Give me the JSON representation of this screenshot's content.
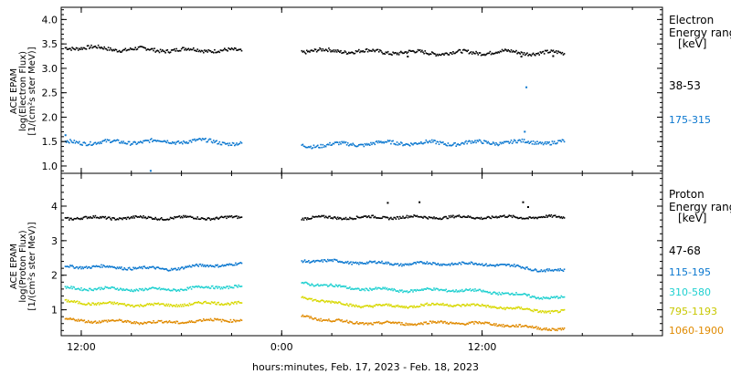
{
  "xaxis": {
    "title": "hours:minutes, Feb. 17, 2023 - Feb. 18, 2023",
    "ticks": [
      {
        "value": 12,
        "label": "12:00"
      },
      {
        "value": 24,
        "label": "0:00"
      },
      {
        "value": 36,
        "label": "12:00"
      }
    ],
    "range": [
      10.8,
      46.8
    ],
    "minor_step": 3,
    "data_gap": [
      21.6,
      25.1
    ],
    "data_end": 40.9
  },
  "chart_data": [
    {
      "type": "scatter",
      "panel": "electron",
      "ylabel": [
        "ACE EPAM",
        "log(Electron Flux)",
        "[1/(cm²s ster MeV)]"
      ],
      "ylim": [
        0.85,
        4.25
      ],
      "yticks": [
        1.0,
        1.5,
        2.0,
        2.5,
        3.0,
        3.5,
        4.0
      ],
      "ytick_labels": [
        "1.0",
        "1.5",
        "2.0",
        "2.5",
        "3.0",
        "3.5",
        "4.0"
      ],
      "legend_title": [
        "Electron",
        "Energy range",
        "[keV]"
      ],
      "series": [
        {
          "name": "38-53",
          "color": "#000000",
          "x": [
            11.0,
            14.0,
            17.0,
            20.0,
            21.5,
            25.3,
            28.0,
            31.0,
            34.0,
            37.0,
            40.9
          ],
          "y": [
            3.45,
            3.41,
            3.39,
            3.39,
            3.36,
            3.37,
            3.37,
            3.34,
            3.33,
            3.35,
            3.32
          ],
          "outliers": [
            {
              "x": 31.5,
              "y": 3.26
            },
            {
              "x": 38.3,
              "y": 3.26
            },
            {
              "x": 40.2,
              "y": 3.27
            }
          ]
        },
        {
          "name": "175-315",
          "color": "#0a77cf",
          "x": [
            11.0,
            14.0,
            17.0,
            20.0,
            21.5,
            25.3,
            28.0,
            31.0,
            34.0,
            37.0,
            40.9
          ],
          "y": [
            1.5,
            1.5,
            1.52,
            1.52,
            1.46,
            1.43,
            1.46,
            1.49,
            1.48,
            1.5,
            1.5
          ],
          "outliers": [
            {
              "x": 16.1,
              "y": 0.92
            },
            {
              "x": 38.6,
              "y": 2.63
            },
            {
              "x": 38.5,
              "y": 1.72
            },
            {
              "x": 11.0,
              "y": 1.65
            }
          ]
        }
      ]
    },
    {
      "type": "scatter",
      "panel": "proton",
      "ylabel": [
        "ACE EPAM",
        "log(Proton Flux)",
        "[1/(cm²s ster MeV)]"
      ],
      "ylim": [
        0.25,
        4.95
      ],
      "yticks": [
        1,
        2,
        3,
        4
      ],
      "ytick_labels": [
        "1",
        "2",
        "3",
        "4"
      ],
      "legend_title": [
        "Proton",
        "Energy range",
        "[keV]"
      ],
      "series": [
        {
          "name": "47-68",
          "color": "#000000",
          "x": [
            11.0,
            14.0,
            17.0,
            20.0,
            21.5,
            25.3,
            28.0,
            31.0,
            34.0,
            37.0,
            40.9
          ],
          "y": [
            3.68,
            3.68,
            3.68,
            3.68,
            3.68,
            3.68,
            3.69,
            3.7,
            3.7,
            3.7,
            3.7
          ],
          "outliers": [
            {
              "x": 30.3,
              "y": 4.12
            },
            {
              "x": 32.2,
              "y": 4.14
            },
            {
              "x": 38.4,
              "y": 4.14
            },
            {
              "x": 38.7,
              "y": 4.0
            }
          ]
        },
        {
          "name": "115-195",
          "color": "#0a77cf",
          "x": [
            11.0,
            14.0,
            17.0,
            20.0,
            21.5,
            25.3,
            28.0,
            31.0,
            34.0,
            37.0,
            39.0,
            40.9
          ],
          "y": [
            2.28,
            2.25,
            2.2,
            2.32,
            2.33,
            2.45,
            2.4,
            2.35,
            2.36,
            2.33,
            2.2,
            2.14
          ]
        },
        {
          "name": "310-580",
          "color": "#1fd0d0",
          "x": [
            11.0,
            14.0,
            17.0,
            20.0,
            21.5,
            25.3,
            28.0,
            31.0,
            34.0,
            37.0,
            39.0,
            40.9
          ],
          "y": [
            1.65,
            1.62,
            1.6,
            1.68,
            1.7,
            1.8,
            1.65,
            1.58,
            1.6,
            1.52,
            1.4,
            1.36
          ]
        },
        {
          "name": "795-1193",
          "color": "#d8d800",
          "x": [
            11.0,
            14.0,
            17.0,
            20.0,
            21.5,
            25.3,
            28.0,
            31.0,
            34.0,
            37.0,
            39.0,
            40.9
          ],
          "y": [
            1.25,
            1.18,
            1.15,
            1.22,
            1.22,
            1.38,
            1.15,
            1.12,
            1.18,
            1.1,
            1.0,
            0.96
          ]
        },
        {
          "name": "1060-1900",
          "color": "#e08a00",
          "x": [
            11.0,
            14.0,
            17.0,
            20.0,
            21.5,
            25.3,
            28.0,
            31.0,
            34.0,
            37.0,
            39.0,
            40.9
          ],
          "y": [
            0.72,
            0.68,
            0.65,
            0.72,
            0.73,
            0.82,
            0.65,
            0.62,
            0.65,
            0.6,
            0.5,
            0.46
          ]
        }
      ]
    }
  ]
}
